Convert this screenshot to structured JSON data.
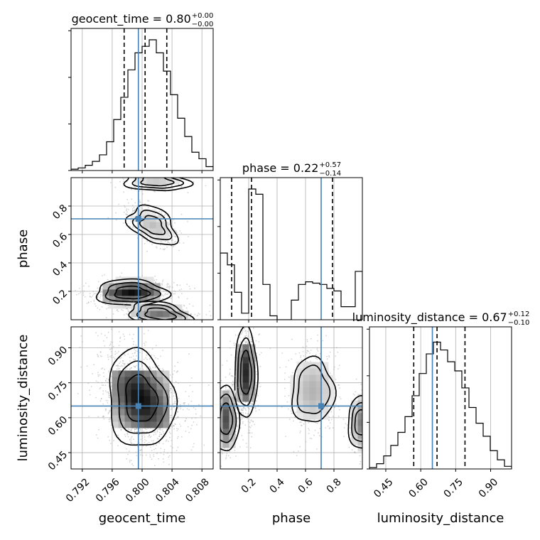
{
  "chart_data": {
    "type": "corner",
    "parameters": [
      "geocent_time",
      "phase",
      "luminosity_distance"
    ],
    "truths": {
      "geocent_time": 0.7995,
      "phase": 0.71,
      "luminosity_distance": 0.65
    },
    "titles": [
      {
        "param": "geocent_time",
        "prefix": "geocent_time = 0.80",
        "plus": "+0.00",
        "minus": "−0.00"
      },
      {
        "param": "phase",
        "prefix": "phase = 0.22",
        "plus": "+0.57",
        "minus": "−0.14"
      },
      {
        "param": "luminosity_distance",
        "prefix": "luminosity_distance = 0.67",
        "plus": "+0.12",
        "minus": "−0.10"
      }
    ],
    "axis_labels": {
      "x": [
        "geocent_time",
        "phase",
        "luminosity_distance"
      ],
      "y": [
        "phase",
        "luminosity_distance"
      ]
    },
    "ticks": {
      "geocent_time": {
        "labels": [
          "0.792",
          "0.796",
          "0.800",
          "0.804",
          "0.808"
        ],
        "values": [
          0.792,
          0.796,
          0.8,
          0.804,
          0.808
        ]
      },
      "phase": {
        "labels": [
          "0.2",
          "0.4",
          "0.6",
          "0.8"
        ],
        "values": [
          0.2,
          0.4,
          0.6,
          0.8
        ]
      },
      "luminosity_distance": {
        "labels": [
          "0.45",
          "0.60",
          "0.75",
          "0.90"
        ],
        "values": [
          0.45,
          0.6,
          0.75,
          0.9
        ]
      }
    },
    "ranges": {
      "geocent_time": [
        0.7905,
        0.8095
      ],
      "phase": [
        0.0,
        1.0
      ],
      "luminosity_distance": [
        0.38,
        0.99
      ]
    },
    "grid": true,
    "hist_geocent_time": {
      "edges_start": 0.7905,
      "bin_width": 0.00095,
      "counts": [
        0.01,
        0.02,
        0.04,
        0.07,
        0.12,
        0.22,
        0.39,
        0.56,
        0.77,
        0.9,
        0.95,
        1.0,
        0.9,
        0.76,
        0.58,
        0.4,
        0.26,
        0.14,
        0.09,
        0.03
      ],
      "quantiles": [
        0.7976,
        0.8004,
        0.8033
      ]
    },
    "hist_phase": {
      "edges_start": 0.0,
      "bin_width": 0.05,
      "counts": [
        0.51,
        0.42,
        0.21,
        0.05,
        1.0,
        0.96,
        0.27,
        0.03,
        0.0,
        0.0,
        0.15,
        0.27,
        0.29,
        0.28,
        0.27,
        0.24,
        0.22,
        0.1,
        0.1,
        0.37
      ],
      "quantiles": [
        0.08,
        0.22,
        0.79
      ]
    },
    "hist_luminosity_distance": {
      "edges_start": 0.38,
      "bin_width": 0.0305,
      "counts": [
        0.01,
        0.04,
        0.1,
        0.18,
        0.28,
        0.4,
        0.56,
        0.73,
        0.88,
        0.97,
        0.91,
        0.82,
        0.75,
        0.62,
        0.47,
        0.35,
        0.25,
        0.14,
        0.07,
        0.02
      ],
      "quantiles": [
        0.57,
        0.67,
        0.79
      ]
    }
  }
}
